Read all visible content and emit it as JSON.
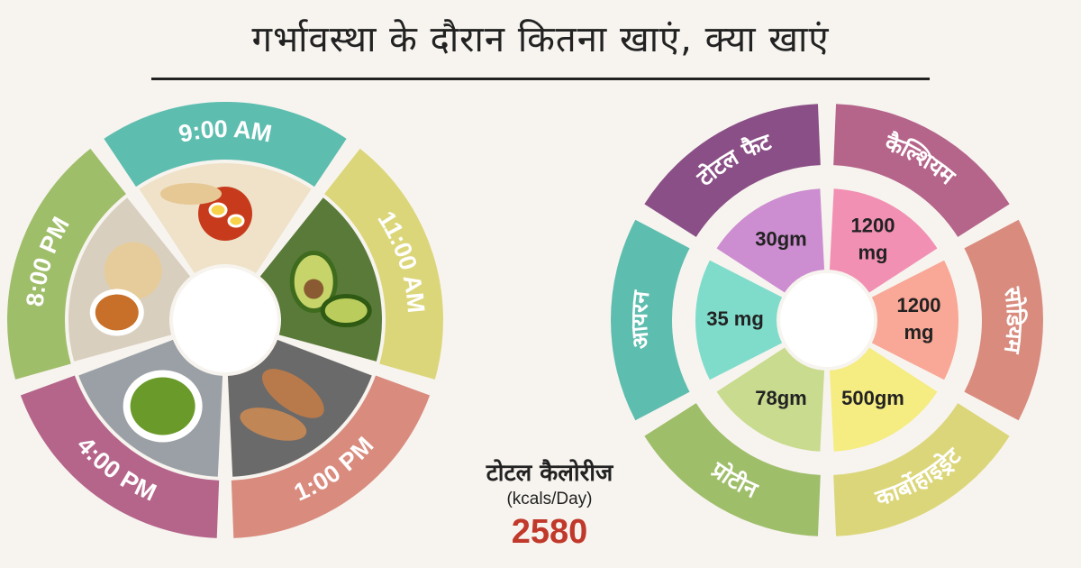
{
  "title": "गर्भावस्था के दौरान कितना खाएं, क्या खाएं",
  "meal_wheel": {
    "times": [
      {
        "label": "9:00 AM",
        "color": "#5dbdaf"
      },
      {
        "label": "11:00 AM",
        "color": "#dcd67a"
      },
      {
        "label": "1:00 PM",
        "color": "#d98b7e"
      },
      {
        "label": "4:00 PM",
        "color": "#b5648a"
      },
      {
        "label": "8:00 PM",
        "color": "#9fbe6a"
      }
    ],
    "foods": [
      {
        "name": "egg-curry-roti",
        "icon": "egg-curry-icon"
      },
      {
        "name": "avocado",
        "icon": "avocado-icon"
      },
      {
        "name": "grilled-chicken",
        "icon": "grilled-chicken-icon"
      },
      {
        "name": "sprouts",
        "icon": "sprouts-icon"
      },
      {
        "name": "roti-dal",
        "icon": "roti-dal-icon"
      }
    ]
  },
  "nutrient_wheel": {
    "items": [
      {
        "label": "कैल्शियम",
        "value_lines": [
          "1200",
          "mg"
        ],
        "ring_color": "#b5648a",
        "fill_color": "#f290b4"
      },
      {
        "label": "सोडियम",
        "value_lines": [
          "1200",
          "mg"
        ],
        "ring_color": "#d98b7e",
        "fill_color": "#f9a796"
      },
      {
        "label": "कार्बोहाइड्रेट",
        "value_lines": [
          "500gm"
        ],
        "ring_color": "#dcd67a",
        "fill_color": "#f5ec82"
      },
      {
        "label": "प्रोटीन",
        "value_lines": [
          "78gm"
        ],
        "ring_color": "#9fbe6a",
        "fill_color": "#c9db8e"
      },
      {
        "label": "आयरन",
        "value_lines": [
          "35 mg"
        ],
        "ring_color": "#5dbdaf",
        "fill_color": "#7fdccb"
      },
      {
        "label": "टोटल फैट",
        "value_lines": [
          "30gm"
        ],
        "ring_color": "#8a4f86",
        "fill_color": "#cc8ed0"
      }
    ]
  },
  "totals": {
    "label": "टोटल कैलोरीज",
    "unit": "(kcals/Day)",
    "value": "2580"
  }
}
